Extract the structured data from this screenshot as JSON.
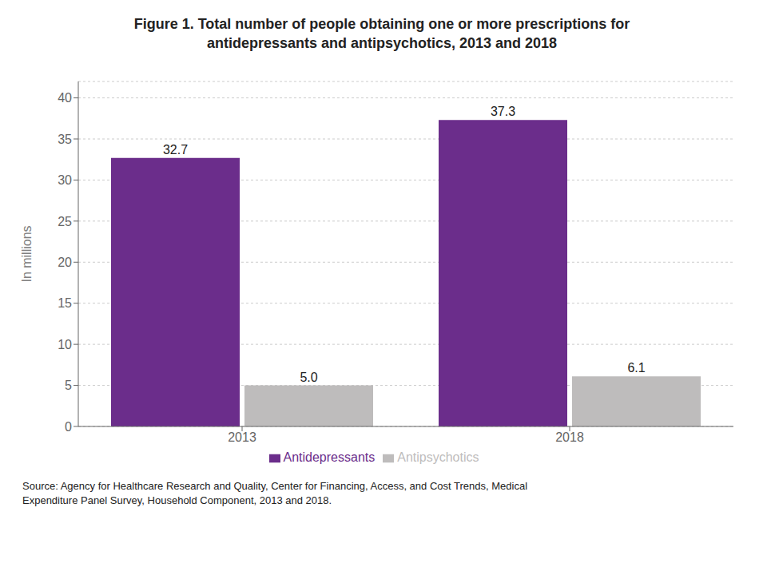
{
  "chart_data": {
    "type": "bar",
    "title": "Figure 1. Total number of people obtaining one or more prescriptions for\nantidepressants and antipsychotics, 2013 and 2018",
    "categories": [
      "2013",
      "2018"
    ],
    "series": [
      {
        "name": "Antidepressants",
        "color": "#6B2D8B",
        "values": [
          32.7,
          37.3
        ]
      },
      {
        "name": "Antipsychotics",
        "color": "#BEBCBC",
        "values": [
          5.0,
          6.1
        ],
        "value_labels": [
          "5.0",
          "6.1"
        ]
      }
    ],
    "y_label": "In millions",
    "ylim": [
      0,
      42
    ],
    "yticks": [
      0,
      5,
      10,
      15,
      20,
      25,
      30,
      35,
      40
    ],
    "grid": true,
    "legend": "bottom",
    "data_labels": true,
    "annotations": [
      "Source: Agency for Healthcare Research and Quality, Center for Financing, Access, and Cost Trends, Medical\nExpenditure Panel Survey, Household Component, 2013 and 2018."
    ]
  }
}
